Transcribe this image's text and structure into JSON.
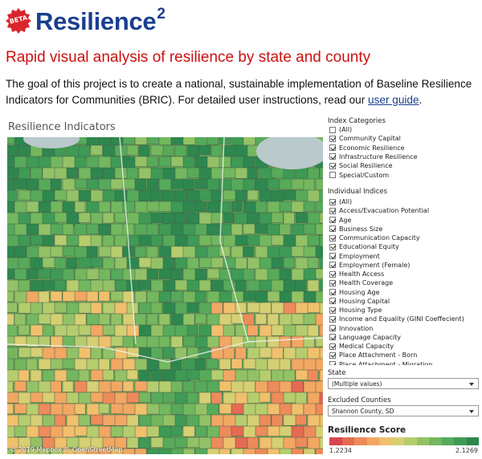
{
  "header": {
    "beta_label": "BETA",
    "title": "Resilience",
    "title_sup": "2",
    "subtitle": "Rapid visual analysis of resilience by state and county",
    "description": "The goal of this project is to create a national, sustainable implementation of Baseline Resilience Indicators for Communities (BRIC). For detailed user instructions, read our",
    "guide_link": "user guide",
    "description_end": "."
  },
  "map": {
    "title": "Resilience Indicators",
    "credit": "© 2019 Mapbox © OpenStreetMap"
  },
  "filters": {
    "index_categories": {
      "title": "Index Categories",
      "items": [
        {
          "label": "(All)",
          "checked": false
        },
        {
          "label": "Community Capital",
          "checked": true
        },
        {
          "label": "Economic Resilience",
          "checked": true
        },
        {
          "label": "Infrastructure Resilience",
          "checked": true
        },
        {
          "label": "Social Resilience",
          "checked": true
        },
        {
          "label": "Special/Custom",
          "checked": false
        }
      ]
    },
    "individual_indices": {
      "title": "Individual Indices",
      "items": [
        {
          "label": "(All)",
          "checked": true
        },
        {
          "label": "Access/Evacuation Potential",
          "checked": true
        },
        {
          "label": "Age",
          "checked": true
        },
        {
          "label": "Business Size",
          "checked": true
        },
        {
          "label": "Communication Capacity",
          "checked": true
        },
        {
          "label": "Educational Equity",
          "checked": true
        },
        {
          "label": "Employment",
          "checked": true
        },
        {
          "label": "Employment (Female)",
          "checked": true
        },
        {
          "label": "Health Access",
          "checked": true
        },
        {
          "label": "Health Coverage",
          "checked": true
        },
        {
          "label": "Housing Age",
          "checked": true
        },
        {
          "label": "Housing Capital",
          "checked": true
        },
        {
          "label": "Housing Type",
          "checked": true
        },
        {
          "label": "Income and Equality (GINI Coeffecient)",
          "checked": true
        },
        {
          "label": "Innovation",
          "checked": true
        },
        {
          "label": "Language Capacity",
          "checked": true
        },
        {
          "label": "Medical Capacity",
          "checked": true
        },
        {
          "label": "Place Attachment - Born",
          "checked": true
        },
        {
          "label": "Place Attachment - Migration",
          "checked": true
        }
      ]
    },
    "state": {
      "title": "State",
      "value": "(Multiple values)"
    },
    "excluded_counties": {
      "title": "Excluded Counties",
      "value": "Shannon County, SD"
    }
  },
  "legend": {
    "title": "Resilience Score",
    "min": "1.2234",
    "max": "2.1269",
    "colors": [
      "#d8474e",
      "#e56a52",
      "#ed8b5a",
      "#f2a763",
      "#f0c06c",
      "#d6cf73",
      "#b6cd6e",
      "#93c266",
      "#73b75e",
      "#56aa5a",
      "#3e9a55",
      "#2e874e"
    ]
  }
}
